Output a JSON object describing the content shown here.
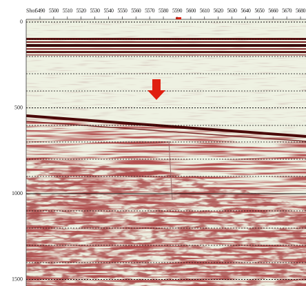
{
  "plot": {
    "x_label": "Shot",
    "x_ticks": [
      "5490",
      "5500",
      "5510",
      "5520",
      "5530",
      "5540",
      "5550",
      "5560",
      "5570",
      "5580",
      "5590",
      "5600",
      "5610",
      "5620",
      "5630",
      "5640",
      "5650",
      "5660",
      "5670",
      "5680"
    ],
    "y_ticks": [
      0,
      500,
      1000,
      1500
    ]
  }
}
